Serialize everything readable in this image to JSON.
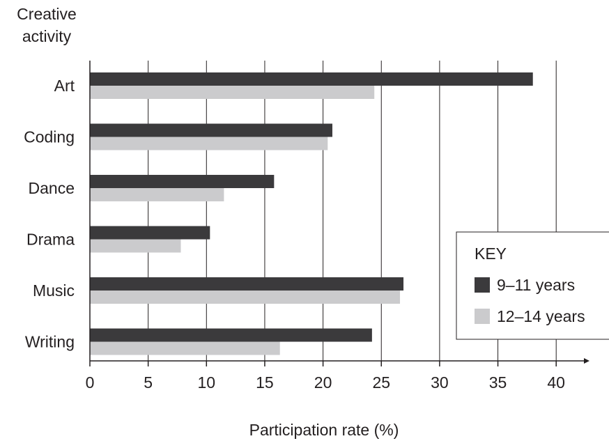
{
  "chart_data": {
    "type": "bar",
    "orientation": "horizontal",
    "ylabel_lines": [
      "Creative",
      "activity"
    ],
    "xlabel": "Participation rate (%)",
    "categories": [
      "Art",
      "Coding",
      "Dance",
      "Drama",
      "Music",
      "Writing"
    ],
    "series": [
      {
        "name": "9–11 years",
        "color": "#3b3a3c",
        "values": [
          38,
          20.8,
          15.8,
          10.3,
          26.9,
          24.2
        ]
      },
      {
        "name": "12–14 years",
        "color": "#cbcbcd",
        "values": [
          24.4,
          20.4,
          11.5,
          7.8,
          26.6,
          16.3
        ]
      }
    ],
    "xlim": [
      0,
      40
    ],
    "xticks": [
      0,
      5,
      10,
      15,
      20,
      25,
      30,
      35,
      40
    ],
    "grid": "vertical",
    "legend": {
      "title": "KEY",
      "placement": "bottom-right"
    }
  }
}
